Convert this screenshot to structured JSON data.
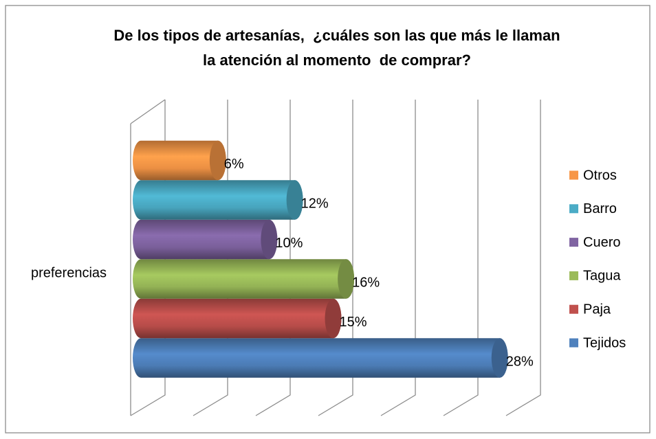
{
  "chart_data": {
    "type": "bar3d_horizontal",
    "title": [
      "De los tipos de artesanías,  ¿cuáles son las que más le llaman",
      "la atención al momento  de comprar?"
    ],
    "categories": [
      "preferencias"
    ],
    "series": [
      {
        "name": "Tejidos",
        "color": "#4f81bd",
        "values": [
          28
        ],
        "value_labels": [
          "28%"
        ]
      },
      {
        "name": "Paja",
        "color": "#c0504d",
        "values": [
          15
        ],
        "value_labels": [
          "15%"
        ]
      },
      {
        "name": "Tagua",
        "color": "#9bbb59",
        "values": [
          16
        ],
        "value_labels": [
          "16%"
        ]
      },
      {
        "name": "Cuero",
        "color": "#8064a2",
        "values": [
          10
        ],
        "value_labels": [
          "10%"
        ]
      },
      {
        "name": "Barro",
        "color": "#4bacc6",
        "values": [
          12
        ],
        "value_labels": [
          "12%"
        ]
      },
      {
        "name": "Otros",
        "color": "#f79646",
        "values": [
          6
        ],
        "value_labels": [
          "6%"
        ]
      }
    ],
    "xlim": [
      0,
      30
    ],
    "xticks": [
      0,
      5,
      10,
      15,
      20,
      25,
      30
    ],
    "grid": true,
    "legend": "right"
  }
}
